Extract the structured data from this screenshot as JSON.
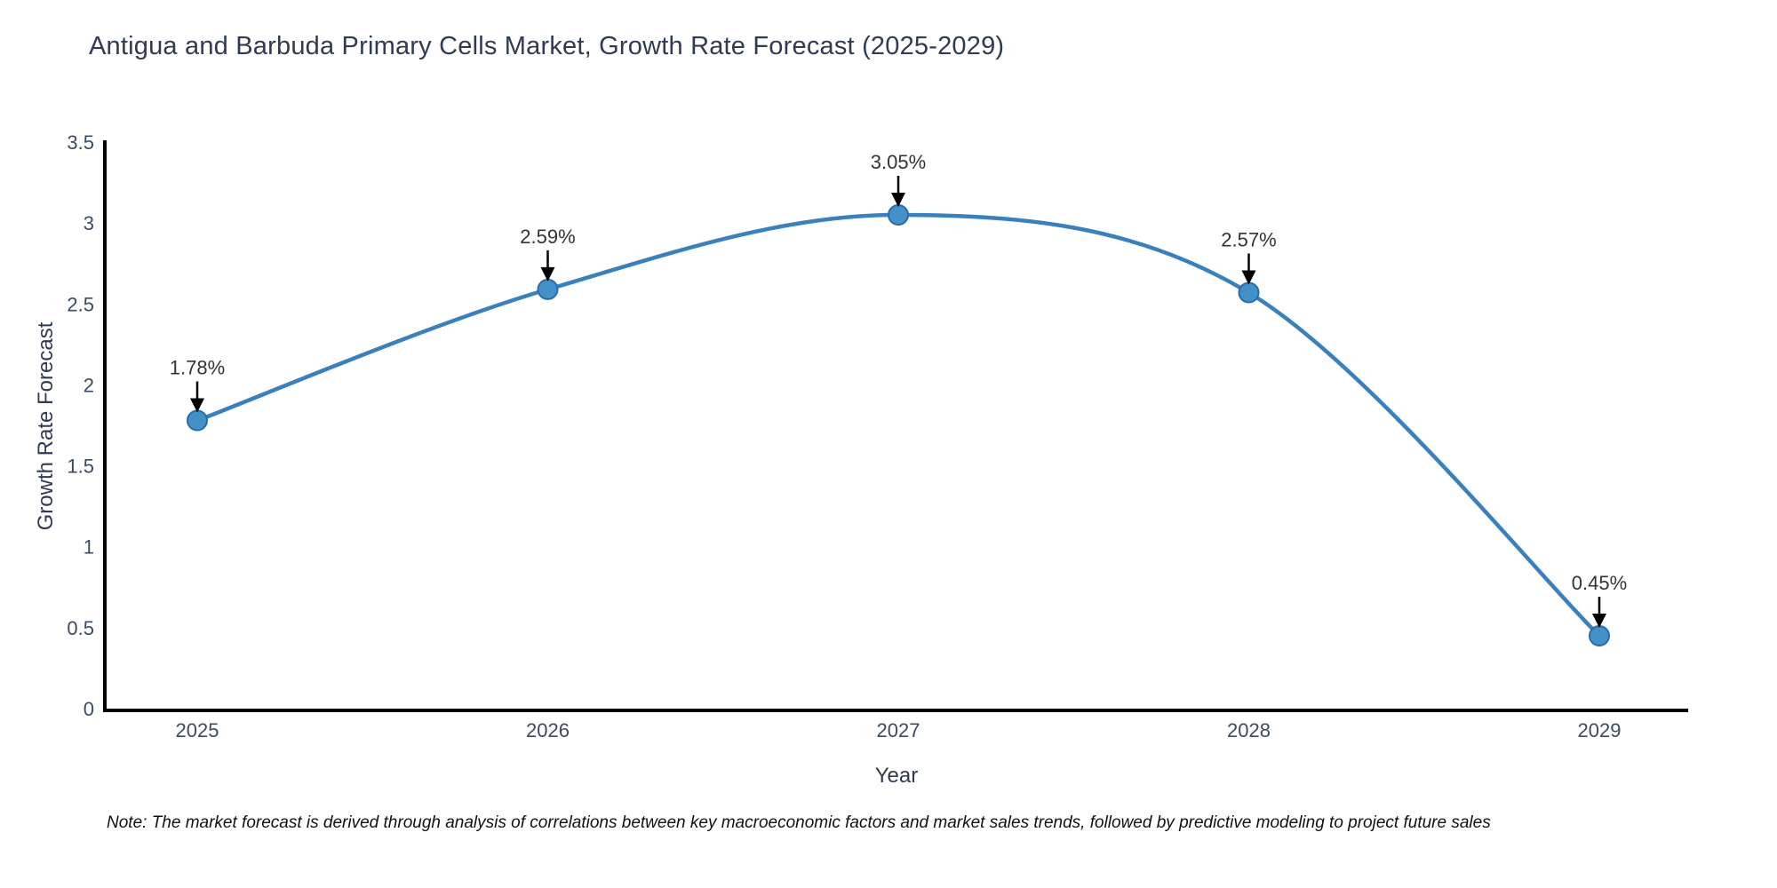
{
  "title": "Antigua and Barbuda Primary Cells Market, Growth Rate Forecast (2025-2029)",
  "note": "Note: The market forecast is derived through analysis of correlations between key macroeconomic factors and market sales trends, followed by predictive modeling to project future sales",
  "chart_data": {
    "type": "line",
    "title": "Antigua and Barbuda Primary Cells Market, Growth Rate Forecast (2025-2029)",
    "xlabel": "Year",
    "ylabel": "Growth Rate Forecast",
    "x": [
      2025,
      2026,
      2027,
      2028,
      2029
    ],
    "xtick_labels": [
      "2025",
      "2026",
      "2027",
      "2028",
      "2029"
    ],
    "series": [
      {
        "name": "Growth Rate Forecast",
        "values": [
          1.78,
          2.59,
          3.05,
          2.57,
          0.45
        ]
      }
    ],
    "point_labels": [
      "1.78%",
      "2.59%",
      "3.05%",
      "2.57%",
      "0.45%"
    ],
    "ylim": [
      0,
      3.5
    ],
    "yticks": [
      0,
      0.5,
      1,
      1.5,
      2,
      2.5,
      3,
      3.5
    ],
    "ytick_labels": [
      "0",
      "0.5",
      "1",
      "1.5",
      "2",
      "2.5",
      "3",
      "3.5"
    ],
    "grid": false,
    "legend_position": "none",
    "line_shape": "spline",
    "colors": {
      "line": "#3a80bd",
      "marker_fill": "#4490c8",
      "marker_edge": "#2a6ca8",
      "axis_line": "#000000",
      "tick_text": "#3b4a63",
      "annotation_text": "#333333",
      "annotation_arrow": "#000000",
      "title_text": "#2f3b52"
    }
  }
}
